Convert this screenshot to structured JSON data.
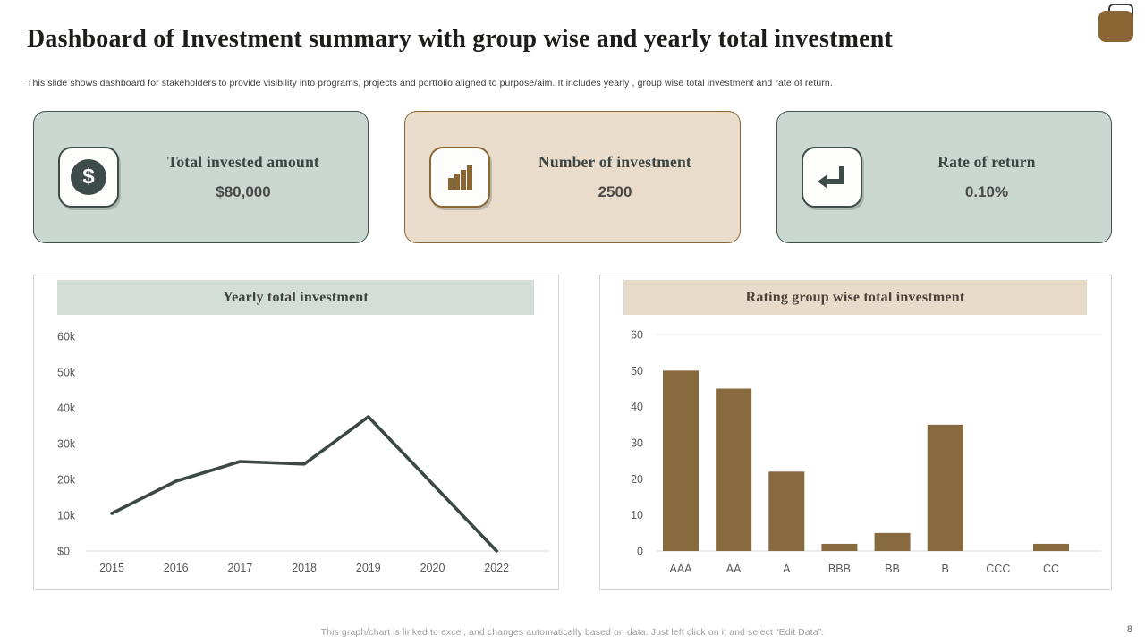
{
  "slide": {
    "title": "Dashboard of Investment summary with group wise and yearly total investment",
    "subtitle": "This slide shows dashboard for stakeholders to provide visibility into programs, projects and portfolio aligned to purpose/aim. It includes yearly ,  group wise total investment and rate of return.",
    "footer_note": "This graph/chart is linked to excel, and changes automatically based on data. Just left click on it and select “Edit Data”.",
    "page_number": "8"
  },
  "kpi_cards": [
    {
      "label": "Total invested amount",
      "value": "$80,000",
      "icon": "dollar-icon",
      "theme": "sage"
    },
    {
      "label": "Number of investment",
      "value": "2500",
      "icon": "bar-chart-icon",
      "theme": "tan"
    },
    {
      "label": "Rate of return",
      "value": "0.10%",
      "icon": "return-arrow-icon",
      "theme": "sage"
    }
  ],
  "colors": {
    "sage_card_bg": "#cbd7d1",
    "sage_border": "#41534f",
    "tan_card_bg": "#e9dccb",
    "tan_border": "#8a6635",
    "brown_accent": "#876a3e",
    "dark_slate": "#3d4c49",
    "axis_text": "#595959",
    "footer_text": "#9e9e9e"
  },
  "chart_data": [
    {
      "type": "line",
      "title": "Yearly total investment",
      "categories": [
        "2015",
        "2016",
        "2017",
        "2018",
        "2019",
        "2020",
        "2022"
      ],
      "values": [
        10500,
        19500,
        25000,
        24300,
        37500,
        18750,
        0
      ],
      "ylim": [
        0,
        60000
      ],
      "ytick_labels": [
        "$0",
        "10k",
        "20k",
        "30k",
        "40k",
        "50k",
        "60k"
      ],
      "xlabel": "",
      "ylabel": "",
      "grid": false,
      "legend": "none",
      "line_color": "#3b4846"
    },
    {
      "type": "bar",
      "title": "Rating group wise total investment",
      "categories": [
        "AAA",
        "AA",
        "A",
        "BBB",
        "BB",
        "B",
        "CCC",
        "CC"
      ],
      "values": [
        50,
        45,
        22,
        2,
        5,
        35,
        0,
        2
      ],
      "ylim": [
        0,
        60
      ],
      "ytick_labels": [
        "0",
        "10",
        "20",
        "30",
        "40",
        "50",
        "60"
      ],
      "xlabel": "",
      "ylabel": "",
      "grid": false,
      "legend": "none",
      "bar_color": "#876a3e"
    }
  ]
}
